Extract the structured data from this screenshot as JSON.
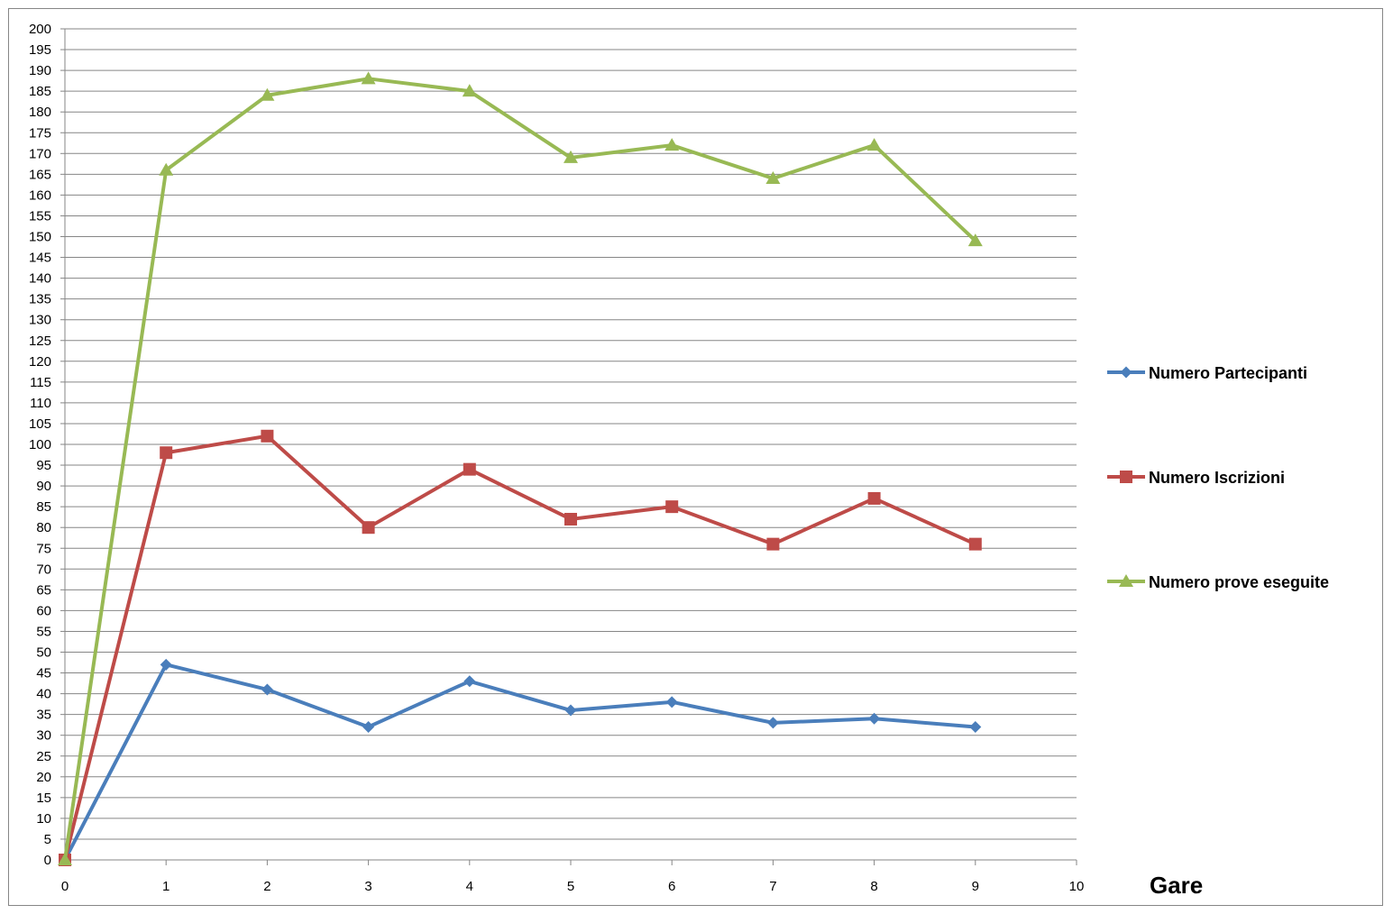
{
  "chart_data": {
    "type": "line",
    "title": "",
    "xlabel": "Gare",
    "ylabel": "",
    "x": [
      0,
      1,
      2,
      3,
      4,
      5,
      6,
      7,
      8,
      9
    ],
    "xlim": [
      0,
      10
    ],
    "ylim": [
      0,
      200
    ],
    "x_ticks": [
      "0",
      "1",
      "2",
      "3",
      "4",
      "5",
      "6",
      "7",
      "8",
      "9",
      "10"
    ],
    "y_ticks": [
      "0",
      "5",
      "10",
      "15",
      "20",
      "25",
      "30",
      "35",
      "40",
      "45",
      "50",
      "55",
      "60",
      "65",
      "70",
      "75",
      "80",
      "85",
      "90",
      "95",
      "100",
      "105",
      "110",
      "115",
      "120",
      "125",
      "130",
      "135",
      "140",
      "145",
      "150",
      "155",
      "160",
      "165",
      "170",
      "175",
      "180",
      "185",
      "190",
      "195",
      "200"
    ],
    "grid": true,
    "legend_position": "right",
    "series": [
      {
        "name": "Numero Partecipanti",
        "color": "#4a7ebb",
        "marker": "diamond",
        "values": [
          0,
          47,
          41,
          32,
          43,
          36,
          38,
          33,
          34,
          32
        ]
      },
      {
        "name": "Numero Iscrizioni",
        "color": "#be4b48",
        "marker": "square",
        "values": [
          0,
          98,
          102,
          80,
          94,
          82,
          85,
          76,
          87,
          76
        ]
      },
      {
        "name": "Numero prove eseguite",
        "color": "#98b954",
        "marker": "triangle",
        "values": [
          0,
          166,
          184,
          188,
          185,
          169,
          172,
          164,
          172,
          149
        ]
      }
    ]
  }
}
